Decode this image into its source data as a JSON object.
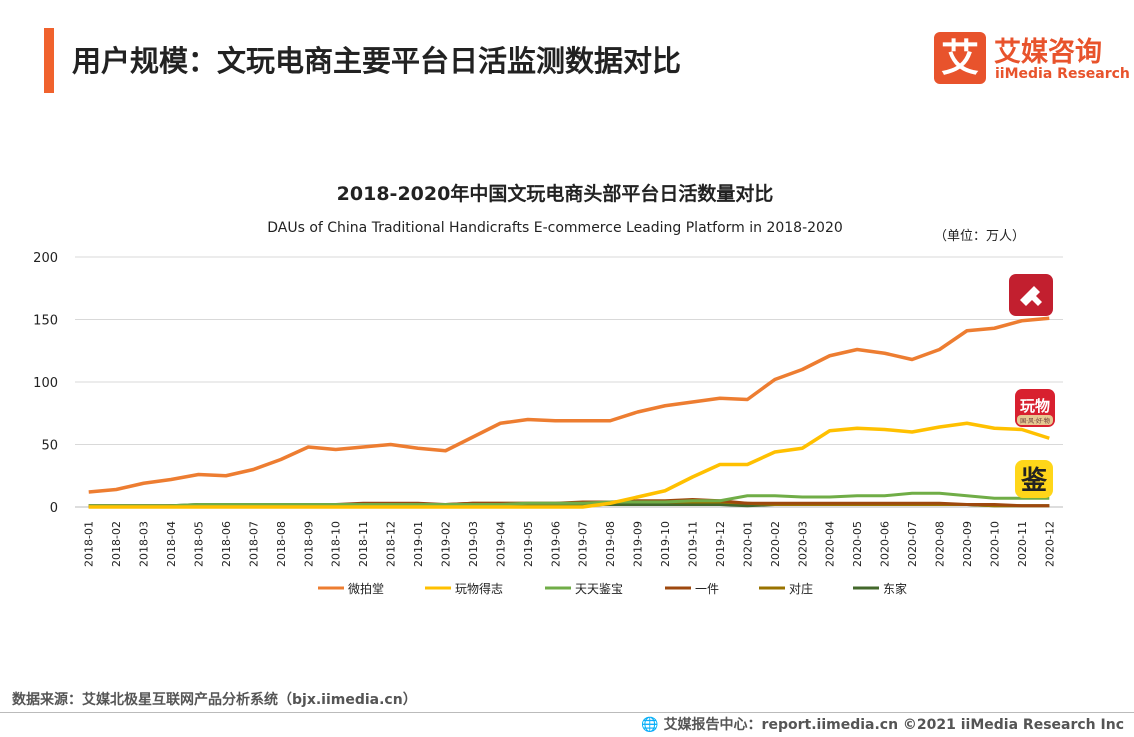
{
  "header": {
    "title": "用户规模：文玩电商主要平台日活监测数据对比",
    "brand_cn": "艾媒咨询",
    "brand_en": "iiMedia Research",
    "logo_char": "艾"
  },
  "chart_data": {
    "type": "line",
    "title": "2018-2020年中国文玩电商头部平台日活数量对比",
    "subtitle": "DAUs of China Traditional Handicrafts E-commerce Leading Platform in 2018-2020",
    "unit": "（单位：万人）",
    "ylim": [
      0,
      200
    ],
    "yticks": [
      0,
      50,
      100,
      150,
      200
    ],
    "grid": true,
    "legend": "bottom",
    "categories": [
      "2018-01",
      "2018-02",
      "2018-03",
      "2018-04",
      "2018-05",
      "2018-06",
      "2018-07",
      "2018-08",
      "2018-09",
      "2018-10",
      "2018-11",
      "2018-12",
      "2019-01",
      "2019-02",
      "2019-03",
      "2019-04",
      "2019-05",
      "2019-06",
      "2019-07",
      "2019-08",
      "2019-09",
      "2019-10",
      "2019-11",
      "2019-12",
      "2020-01",
      "2020-02",
      "2020-03",
      "2020-04",
      "2020-05",
      "2020-06",
      "2020-07",
      "2020-08",
      "2020-09",
      "2020-10",
      "2020-11",
      "2020-12"
    ],
    "series": [
      {
        "name": "微拍堂",
        "color": "#ed7d31",
        "values": [
          12,
          14,
          19,
          22,
          26,
          25,
          30,
          38,
          48,
          46,
          48,
          50,
          47,
          45,
          56,
          67,
          70,
          69,
          69,
          69,
          76,
          81,
          84,
          87,
          86,
          102,
          110,
          121,
          126,
          123,
          118,
          126,
          141,
          143,
          149,
          151
        ]
      },
      {
        "name": "玩物得志",
        "color": "#ffc000",
        "values": [
          0,
          0,
          0,
          0,
          0,
          0,
          0,
          0,
          0,
          0,
          0,
          0,
          0,
          0,
          0,
          0,
          0,
          0,
          0,
          3,
          8,
          13,
          24,
          34,
          34,
          44,
          47,
          61,
          63,
          62,
          60,
          64,
          67,
          63,
          62,
          55
        ]
      },
      {
        "name": "天天鉴宝",
        "color": "#70ad47",
        "values": [
          1,
          1,
          1,
          1,
          2,
          2,
          2,
          2,
          2,
          2,
          2,
          2,
          2,
          2,
          2,
          2,
          3,
          3,
          3,
          4,
          4,
          4,
          5,
          5,
          9,
          9,
          8,
          8,
          9,
          9,
          11,
          11,
          9,
          7,
          7,
          7
        ]
      },
      {
        "name": "一件",
        "color": "#9e480e",
        "values": [
          1,
          1,
          1,
          1,
          1,
          1,
          1,
          1,
          2,
          2,
          3,
          3,
          3,
          2,
          3,
          3,
          3,
          3,
          4,
          4,
          5,
          5,
          6,
          5,
          3,
          3,
          3,
          3,
          3,
          3,
          3,
          3,
          2,
          2,
          1,
          1
        ]
      },
      {
        "name": "对庄",
        "color": "#997300",
        "values": [
          0,
          0,
          0,
          1,
          1,
          1,
          1,
          1,
          1,
          1,
          2,
          2,
          2,
          2,
          3,
          3,
          3,
          3,
          3,
          4,
          4,
          4,
          4,
          4,
          3,
          2,
          2,
          2,
          2,
          2,
          2,
          2,
          2,
          1,
          1,
          1
        ]
      },
      {
        "name": "东家",
        "color": "#43682b",
        "values": [
          1,
          1,
          1,
          1,
          2,
          2,
          2,
          2,
          2,
          2,
          2,
          2,
          2,
          2,
          2,
          2,
          2,
          2,
          2,
          2,
          2,
          2,
          2,
          2,
          1,
          2,
          2,
          2,
          2,
          2,
          2,
          2,
          2,
          1,
          1,
          1
        ]
      }
    ],
    "app_icons": [
      {
        "label": "微拍堂 app icon"
      },
      {
        "label": "玩物",
        "sub": "国·风·好·物"
      },
      {
        "label": "鉴"
      }
    ]
  },
  "footer": {
    "source": "数据来源：艾媒北极星互联网产品分析系统（bjx.iimedia.cn）",
    "credit": "艾媒报告中心：report.iimedia.cn   ©2021  iiMedia Research  Inc"
  }
}
